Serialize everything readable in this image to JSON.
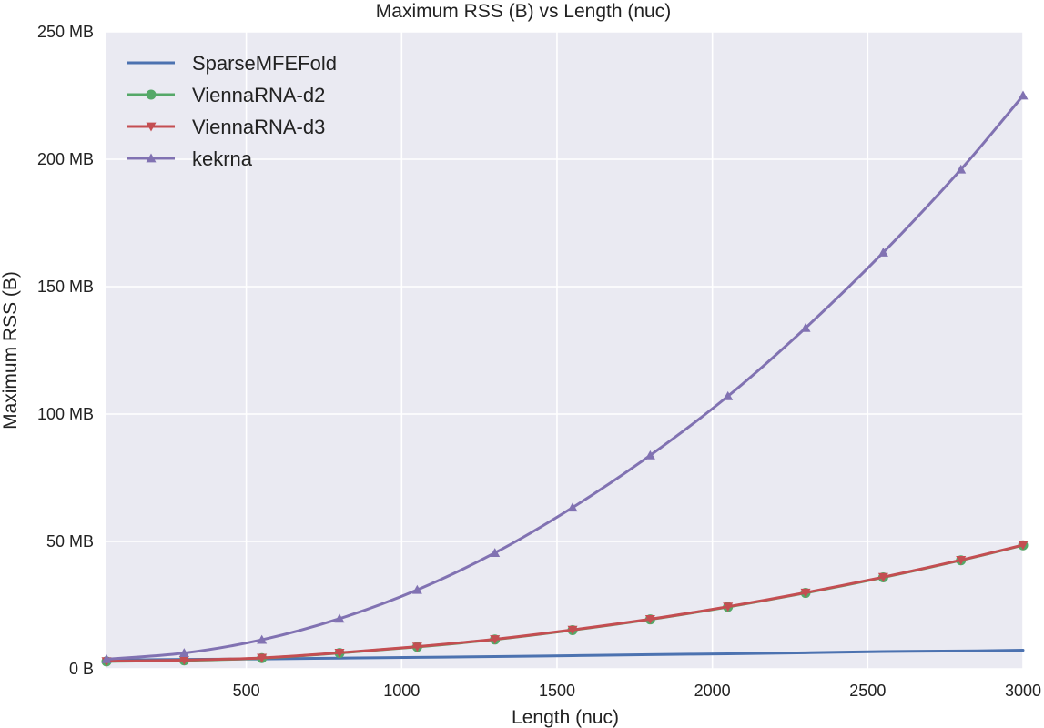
{
  "chart_data": {
    "type": "line",
    "title": "Maximum RSS (B) vs Length (nuc)",
    "xlabel": "Length (nuc)",
    "ylabel": "Maximum RSS (B)",
    "xlim": [
      50,
      3000
    ],
    "ylim": [
      0,
      250
    ],
    "x_ticks": [
      500,
      1000,
      1500,
      2000,
      2500,
      3000
    ],
    "x_tick_labels": [
      "500",
      "1000",
      "1500",
      "2000",
      "2500",
      "3000"
    ],
    "y_ticks": [
      0,
      50,
      100,
      150,
      200,
      250
    ],
    "y_tick_labels": [
      "0 B",
      "50 MB",
      "100 MB",
      "150 MB",
      "200 MB",
      "250 MB"
    ],
    "grid": true,
    "legend_position": "top-left",
    "series": [
      {
        "name": "SparseMFEFold",
        "color": "#4c72b0",
        "marker": "none",
        "x": [
          50,
          300,
          550,
          800,
          1050,
          1300,
          1550,
          1800,
          2050,
          2300,
          2550,
          2800,
          3000
        ],
        "values": [
          3.4,
          3.7,
          3.9,
          4.2,
          4.5,
          4.8,
          5.2,
          5.6,
          5.9,
          6.3,
          6.8,
          7.0,
          7.3
        ]
      },
      {
        "name": "ViennaRNA-d2",
        "color": "#55a868",
        "marker": "circle",
        "x": [
          50,
          300,
          550,
          800,
          1050,
          1300,
          1550,
          1800,
          2050,
          2300,
          2550,
          2800,
          3000
        ],
        "values": [
          2.9,
          3.3,
          4.2,
          6.2,
          8.6,
          11.5,
          15.2,
          19.4,
          24.3,
          29.8,
          35.9,
          42.6,
          48.5
        ]
      },
      {
        "name": "ViennaRNA-d3",
        "color": "#c44e52",
        "marker": "triangle-down",
        "x": [
          50,
          300,
          550,
          800,
          1050,
          1300,
          1550,
          1800,
          2050,
          2300,
          2550,
          2800,
          3000
        ],
        "values": [
          3.0,
          3.4,
          4.3,
          6.3,
          8.7,
          11.6,
          15.3,
          19.5,
          24.4,
          29.9,
          36.0,
          42.7,
          48.6
        ]
      },
      {
        "name": "kekrna",
        "color": "#8172b2",
        "marker": "triangle-up",
        "x": [
          50,
          300,
          550,
          800,
          1050,
          1300,
          1550,
          1800,
          2050,
          2300,
          2550,
          2800,
          3000
        ],
        "values": [
          3.8,
          6.2,
          11.4,
          19.7,
          31.0,
          45.5,
          63.3,
          83.8,
          107.0,
          133.8,
          163.4,
          196.0,
          225.0
        ]
      }
    ]
  }
}
